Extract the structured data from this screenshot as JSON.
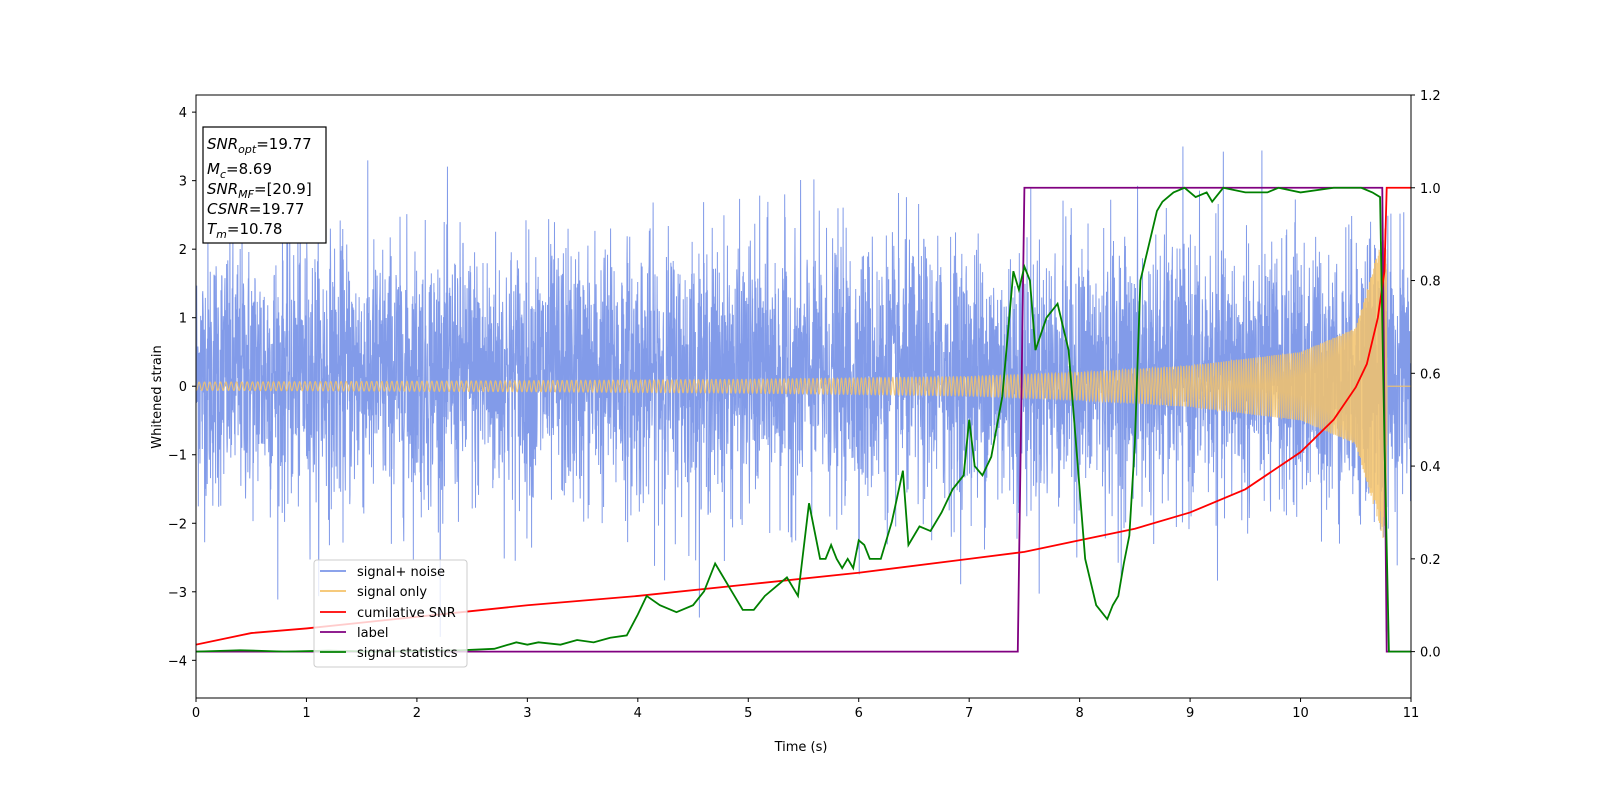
{
  "chart_data": {
    "type": "line",
    "xlabel": "Time (s)",
    "ylabel": "Whitened strain",
    "xlim": [
      0,
      11
    ],
    "ylim": [
      -4.55,
      4.25
    ],
    "y2lim": [
      -0.1,
      1.2
    ],
    "x_ticks": [
      "0",
      "1",
      "2",
      "3",
      "4",
      "5",
      "6",
      "7",
      "8",
      "9",
      "10",
      "11"
    ],
    "y_ticks": [
      "4",
      "3",
      "2",
      "1",
      "0",
      "−1",
      "−2",
      "−3",
      "−4"
    ],
    "y2_ticks": [
      "1.2",
      "1.0",
      "0.8",
      "0.6",
      "0.4",
      "0.2",
      "0.0"
    ],
    "grid": false,
    "legend_position": "lower-left",
    "info_box": {
      "snr_opt": {
        "base": "SNR",
        "sub": "opt",
        "value": "=19.77"
      },
      "mc": {
        "base": "M",
        "sub": "c",
        "value": "=8.69"
      },
      "snr_mf": {
        "base": "SNR",
        "sub": "MF",
        "value": "=[20.9]"
      },
      "csnr": {
        "base": "CSNR",
        "value": "=19.77"
      },
      "tm": {
        "base": "T",
        "sub": "m",
        "value": "=10.78"
      }
    },
    "series": [
      {
        "name": "signal+ noise",
        "color": "#7b96e8",
        "axis": "left",
        "description_values": {
          "noise_std": 1.0,
          "typical_range": [
            -2.5,
            3.3
          ],
          "extremes": [
            -4.15,
            3.65
          ]
        }
      },
      {
        "name": "signal only",
        "color": "#f5c36a",
        "axis": "left",
        "amplitude_envelope": {
          "x": [
            0,
            3,
            5,
            7,
            8,
            9,
            10,
            10.5,
            10.78
          ],
          "y": [
            0.06,
            0.08,
            0.1,
            0.14,
            0.2,
            0.3,
            0.5,
            0.85,
            2.4
          ]
        }
      },
      {
        "name": "cumilative SNR",
        "color": "#ff0000",
        "axis": "right",
        "x": [
          0,
          0.5,
          1,
          2,
          3,
          4,
          5,
          6,
          7,
          7.5,
          8,
          8.5,
          9,
          9.5,
          10,
          10.3,
          10.5,
          10.6,
          10.7,
          10.76,
          10.78,
          11
        ],
        "y": [
          0.015,
          0.04,
          0.05,
          0.075,
          0.1,
          0.12,
          0.145,
          0.17,
          0.2,
          0.215,
          0.24,
          0.265,
          0.3,
          0.35,
          0.43,
          0.5,
          0.57,
          0.62,
          0.72,
          0.82,
          1.0,
          1.0
        ]
      },
      {
        "name": "label",
        "color": "#800080",
        "axis": "right",
        "x": [
          0,
          7.44,
          7.5,
          10.74,
          10.78,
          11
        ],
        "y": [
          0.0,
          0.0,
          1.0,
          1.0,
          0.0,
          0.0
        ]
      },
      {
        "name": "signal statistics",
        "color": "#008000",
        "axis": "right",
        "x": [
          0,
          0.4,
          0.8,
          1.2,
          1.6,
          2,
          2.4,
          2.7,
          2.9,
          3.0,
          3.1,
          3.3,
          3.45,
          3.6,
          3.75,
          3.9,
          4.0,
          4.08,
          4.2,
          4.35,
          4.5,
          4.6,
          4.7,
          4.75,
          4.85,
          4.95,
          5.05,
          5.15,
          5.25,
          5.35,
          5.45,
          5.55,
          5.6,
          5.65,
          5.7,
          5.75,
          5.8,
          5.85,
          5.9,
          5.95,
          6.0,
          6.05,
          6.1,
          6.2,
          6.3,
          6.4,
          6.45,
          6.55,
          6.65,
          6.75,
          6.85,
          6.95,
          7.0,
          7.05,
          7.12,
          7.2,
          7.3,
          7.4,
          7.45,
          7.5,
          7.55,
          7.6,
          7.7,
          7.8,
          7.9,
          7.95,
          8.05,
          8.15,
          8.25,
          8.3,
          8.35,
          8.4,
          8.45,
          8.5,
          8.55,
          8.6,
          8.7,
          8.75,
          8.85,
          8.95,
          9.05,
          9.15,
          9.2,
          9.3,
          9.5,
          9.7,
          9.8,
          10.0,
          10.3,
          10.55,
          10.65,
          10.72,
          10.76,
          10.8,
          10.9,
          11
        ],
        "y": [
          0.0,
          0.003,
          0.0,
          0.002,
          0.0,
          0.001,
          0.003,
          0.006,
          0.02,
          0.015,
          0.02,
          0.015,
          0.025,
          0.02,
          0.03,
          0.035,
          0.08,
          0.12,
          0.1,
          0.085,
          0.1,
          0.13,
          0.19,
          0.17,
          0.13,
          0.09,
          0.09,
          0.12,
          0.14,
          0.16,
          0.12,
          0.32,
          0.26,
          0.2,
          0.2,
          0.23,
          0.2,
          0.18,
          0.2,
          0.18,
          0.24,
          0.23,
          0.2,
          0.2,
          0.28,
          0.39,
          0.23,
          0.27,
          0.26,
          0.3,
          0.35,
          0.38,
          0.5,
          0.4,
          0.38,
          0.42,
          0.55,
          0.82,
          0.78,
          0.83,
          0.8,
          0.65,
          0.72,
          0.75,
          0.65,
          0.5,
          0.2,
          0.1,
          0.07,
          0.1,
          0.12,
          0.19,
          0.25,
          0.45,
          0.8,
          0.85,
          0.95,
          0.97,
          0.99,
          1.0,
          0.98,
          0.99,
          0.97,
          1.0,
          0.99,
          0.99,
          1.0,
          0.99,
          1.0,
          1.0,
          0.99,
          0.98,
          0.45,
          0.0,
          0.0,
          0.0
        ]
      }
    ]
  }
}
